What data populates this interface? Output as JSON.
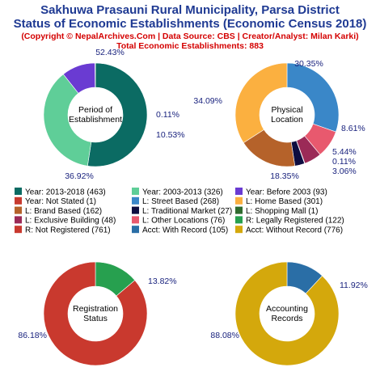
{
  "header": {
    "title_line1": "Sakhuwa Prasauni Rural Municipality, Parsa District",
    "title_line2": "Status of Economic Establishments (Economic Census 2018)",
    "copyright": "(Copyright © NepalArchives.Com | Data Source: CBS | Creator/Analyst: Milan Karki)",
    "total": "Total Economic Establishments: 883"
  },
  "chart_data": [
    {
      "type": "pie",
      "center_label": [
        "Period of",
        "Establishment"
      ],
      "series": [
        {
          "name": "Year: 2013-2018",
          "value": 463,
          "percent_label": "52.43%",
          "color": "#0b6b63"
        },
        {
          "name": "Year: 2003-2013",
          "value": 326,
          "percent_label": "36.92%",
          "color": "#5fce98"
        },
        {
          "name": "Year: Before 2003",
          "value": 93,
          "percent_label": "10.53%",
          "color": "#6a3bd2"
        },
        {
          "name": "Year: Not Stated",
          "value": 1,
          "percent_label": "0.11%",
          "color": "#c73a2f"
        }
      ]
    },
    {
      "type": "pie",
      "center_label": [
        "Physical",
        "Location"
      ],
      "series": [
        {
          "name": "L: Street Based",
          "value": 268,
          "percent_label": "30.35%",
          "color": "#3a87c8"
        },
        {
          "name": "L: Other Locations",
          "value": 76,
          "percent_label": "8.61%",
          "color": "#e8596e"
        },
        {
          "name": "L: Exclusive Building",
          "value": 48,
          "percent_label": "5.44%",
          "color": "#9b2a57"
        },
        {
          "name": "L: Shopping Mall",
          "value": 1,
          "percent_label": "0.11%",
          "color": "#2f6b2f"
        },
        {
          "name": "L: Traditional Market",
          "value": 27,
          "percent_label": "3.06%",
          "color": "#0d0d40"
        },
        {
          "name": "L: Brand Based",
          "value": 162,
          "percent_label": "18.35%",
          "color": "#b5622a"
        },
        {
          "name": "L: Home Based",
          "value": 301,
          "percent_label": "34.09%",
          "color": "#fbb040"
        }
      ]
    },
    {
      "type": "pie",
      "center_label": [
        "Registration",
        "Status"
      ],
      "series": [
        {
          "name": "R: Legally Registered",
          "value": 122,
          "percent_label": "13.82%",
          "color": "#27a04f"
        },
        {
          "name": "R: Not Registered",
          "value": 761,
          "percent_label": "86.18%",
          "color": "#c9392e"
        }
      ]
    },
    {
      "type": "pie",
      "center_label": [
        "Accounting",
        "Records"
      ],
      "series": [
        {
          "name": "Acct: With Record",
          "value": 105,
          "percent_label": "11.92%",
          "color": "#2a6ea6"
        },
        {
          "name": "Acct: Without Record",
          "value": 776,
          "percent_label": "88.08%",
          "color": "#d4a80c"
        }
      ]
    }
  ],
  "legend": [
    {
      "label": "Year: 2013-2018 (463)",
      "color": "#0b6b63"
    },
    {
      "label": "Year: 2003-2013 (326)",
      "color": "#5fce98"
    },
    {
      "label": "Year: Before 2003 (93)",
      "color": "#6a3bd2"
    },
    {
      "label": "Year: Not Stated (1)",
      "color": "#c73a2f"
    },
    {
      "label": "L: Street Based (268)",
      "color": "#3a87c8"
    },
    {
      "label": "L: Home Based (301)",
      "color": "#fbb040"
    },
    {
      "label": "L: Brand Based (162)",
      "color": "#b5622a"
    },
    {
      "label": "L: Traditional Market (27)",
      "color": "#0d0d40"
    },
    {
      "label": "L: Shopping Mall (1)",
      "color": "#2f6b2f"
    },
    {
      "label": "L: Exclusive Building (48)",
      "color": "#9b2a57"
    },
    {
      "label": "L: Other Locations (76)",
      "color": "#e8596e"
    },
    {
      "label": "R: Legally Registered (122)",
      "color": "#27a04f"
    },
    {
      "label": "R: Not Registered (761)",
      "color": "#c9392e"
    },
    {
      "label": "Acct: With Record (105)",
      "color": "#2a6ea6"
    },
    {
      "label": "Acct: Without Record (776)",
      "color": "#d4a80c"
    }
  ]
}
